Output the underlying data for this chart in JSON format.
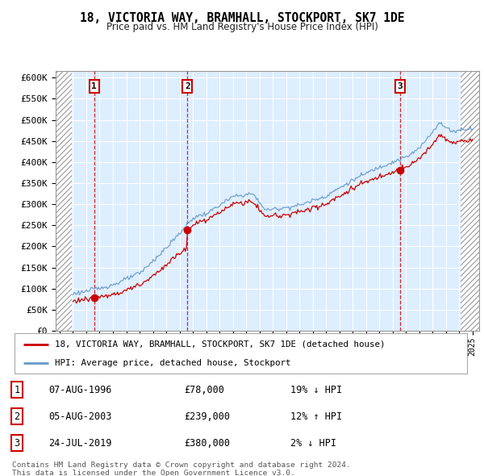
{
  "title": "18, VICTORIA WAY, BRAMHALL, STOCKPORT, SK7 1DE",
  "subtitle": "Price paid vs. HM Land Registry's House Price Index (HPI)",
  "ylabel_vals": [
    0,
    50000,
    100000,
    150000,
    200000,
    250000,
    300000,
    350000,
    400000,
    450000,
    500000,
    550000,
    600000
  ],
  "ylabel_labels": [
    "£0",
    "£50K",
    "£100K",
    "£150K",
    "£200K",
    "£250K",
    "£300K",
    "£350K",
    "£400K",
    "£450K",
    "£500K",
    "£550K",
    "£600K"
  ],
  "xlim": [
    1993.7,
    2025.5
  ],
  "ylim": [
    0,
    615000
  ],
  "sale_dates": [
    1996.59,
    2003.59,
    2019.55
  ],
  "sale_prices": [
    78000,
    239000,
    380000
  ],
  "sale_labels": [
    "1",
    "2",
    "3"
  ],
  "legend_property": "18, VICTORIA WAY, BRAMHALL, STOCKPORT, SK7 1DE (detached house)",
  "legend_hpi": "HPI: Average price, detached house, Stockport",
  "table_rows": [
    {
      "num": "1",
      "date": "07-AUG-1996",
      "price": "£78,000",
      "hpi": "19% ↓ HPI"
    },
    {
      "num": "2",
      "date": "05-AUG-2003",
      "price": "£239,000",
      "hpi": "12% ↑ HPI"
    },
    {
      "num": "3",
      "date": "24-JUL-2019",
      "price": "£380,000",
      "hpi": "2% ↓ HPI"
    }
  ],
  "footnote1": "Contains HM Land Registry data © Crown copyright and database right 2024.",
  "footnote2": "This data is licensed under the Open Government Licence v3.0.",
  "property_line_color": "#cc0000",
  "hpi_line_color": "#6699cc",
  "bg_color": "#ddeeff",
  "grid_color": "#ffffff",
  "sale_marker_color": "#cc0000",
  "vline_color": "#cc0000",
  "hatch_region_color": "#c8c8d8"
}
